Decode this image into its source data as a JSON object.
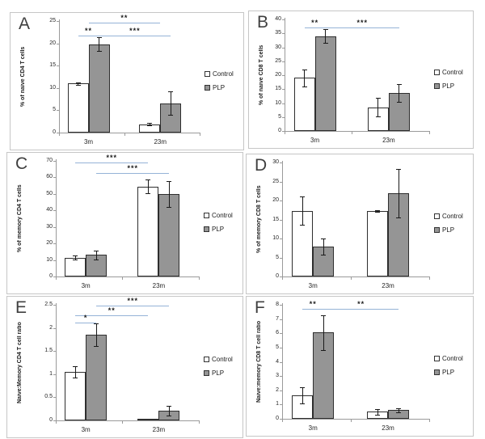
{
  "legend": {
    "items": [
      {
        "label": "Control",
        "fill": "#ffffff"
      },
      {
        "label": "PLP",
        "fill": "#959595"
      }
    ]
  },
  "colors": {
    "significance_line": "#95b3d7",
    "axis": "#9a9a9a",
    "bar_border": "#2e2e2e",
    "panel_border": "#c6c6c6",
    "control_fill": "#ffffff",
    "plp_fill": "#959595"
  },
  "chart_data": [
    {
      "panel": "A",
      "type": "bar",
      "ylabel": "% of naive CD4 T cells",
      "ymax": 25,
      "ytick_step": 5,
      "categories": [
        "3m",
        "23m"
      ],
      "series": [
        {
          "name": "Control",
          "values": [
            11.0,
            1.9
          ],
          "errors": [
            0.3,
            0.2
          ]
        },
        {
          "name": "PLP",
          "values": [
            19.8,
            6.6
          ],
          "errors": [
            1.5,
            2.6
          ]
        }
      ],
      "significance": [
        {
          "label": "**",
          "from": "3m.mid",
          "to": "23m.mid",
          "level": 24.6
        },
        {
          "label": "**",
          "from": "3m.Control",
          "to": "3m.PLP",
          "level": 21.7
        },
        {
          "label": "***",
          "from": "3m.PLP",
          "to": "23m.PLP",
          "level": 21.7
        }
      ]
    },
    {
      "panel": "B",
      "type": "bar",
      "ylabel": "% of naive CD8 T cells",
      "ymax": 40,
      "ytick_step": 5,
      "categories": [
        "3m",
        "23m"
      ],
      "series": [
        {
          "name": "Control",
          "values": [
            19.0,
            8.5
          ],
          "errors": [
            3.0,
            3.4
          ]
        },
        {
          "name": "PLP",
          "values": [
            34.0,
            13.5
          ],
          "errors": [
            2.5,
            3.2
          ]
        }
      ],
      "significance": [
        {
          "label": "**",
          "from": "3m.Control",
          "to": "3m.PLP",
          "level": 37.2
        },
        {
          "label": "***",
          "from": "3m.PLP",
          "to": "23m.PLP",
          "level": 37.2
        }
      ]
    },
    {
      "panel": "C",
      "type": "bar",
      "ylabel": "% of memory CD4 T cells",
      "ymax": 70,
      "ytick_step": 10,
      "categories": [
        "3m",
        "23m"
      ],
      "series": [
        {
          "name": "Control",
          "values": [
            11.5,
            54.5
          ],
          "errors": [
            1.4,
            4.0
          ]
        },
        {
          "name": "PLP",
          "values": [
            13.0,
            50.0
          ],
          "errors": [
            2.5,
            8.0
          ]
        }
      ],
      "significance": [
        {
          "label": "***",
          "from": "3m.Control",
          "to": "23m.Control",
          "level": 69.0
        },
        {
          "label": "***",
          "from": "3m.PLP",
          "to": "23m.PLP",
          "level": 62.5
        }
      ]
    },
    {
      "panel": "D",
      "type": "bar",
      "ylabel": "% of memory CD8 T cells",
      "ymax": 30,
      "ytick_step": 5,
      "categories": [
        "3m",
        "23m"
      ],
      "series": [
        {
          "name": "Control",
          "values": [
            17.3,
            17.3
          ],
          "errors": [
            3.7,
            0.2
          ]
        },
        {
          "name": "PLP",
          "values": [
            7.8,
            22.0
          ],
          "errors": [
            2.1,
            6.4
          ]
        }
      ],
      "significance": []
    },
    {
      "panel": "E",
      "type": "bar",
      "ylabel": "Naive:Memory CD4 T cell ratio",
      "ymax": 2.5,
      "ytick_step": 0.5,
      "categories": [
        "3m",
        "23m"
      ],
      "series": [
        {
          "name": "Control",
          "values": [
            1.05,
            0.04
          ],
          "errors": [
            0.13,
            0
          ]
        },
        {
          "name": "PLP",
          "values": [
            1.85,
            0.21
          ],
          "errors": [
            0.25,
            0.11
          ]
        }
      ],
      "significance": [
        {
          "label": "***",
          "from": "3m.PLP",
          "to": "23m.PLP",
          "level": 2.48
        },
        {
          "label": "**",
          "from": "3m.Control",
          "to": "23m.Control",
          "level": 2.27
        },
        {
          "label": "*",
          "from": "3m.Control",
          "to": "3m.PLP",
          "level": 2.12
        }
      ]
    },
    {
      "panel": "F",
      "type": "bar",
      "ylabel": "Naive:memory CD8 T cell ratio",
      "ymax": 8,
      "ytick_step": 1,
      "categories": [
        "3m",
        "23m"
      ],
      "series": [
        {
          "name": "Control",
          "values": [
            1.65,
            0.5
          ],
          "errors": [
            0.55,
            0.2
          ]
        },
        {
          "name": "PLP",
          "values": [
            6.05,
            0.6
          ],
          "errors": [
            1.2,
            0.15
          ]
        }
      ],
      "significance": [
        {
          "label": "**",
          "from": "3m.Control",
          "to": "3m.PLP",
          "level": 7.7
        },
        {
          "label": "**",
          "from": "3m.PLP",
          "to": "23m.PLP",
          "level": 7.7
        }
      ]
    }
  ]
}
